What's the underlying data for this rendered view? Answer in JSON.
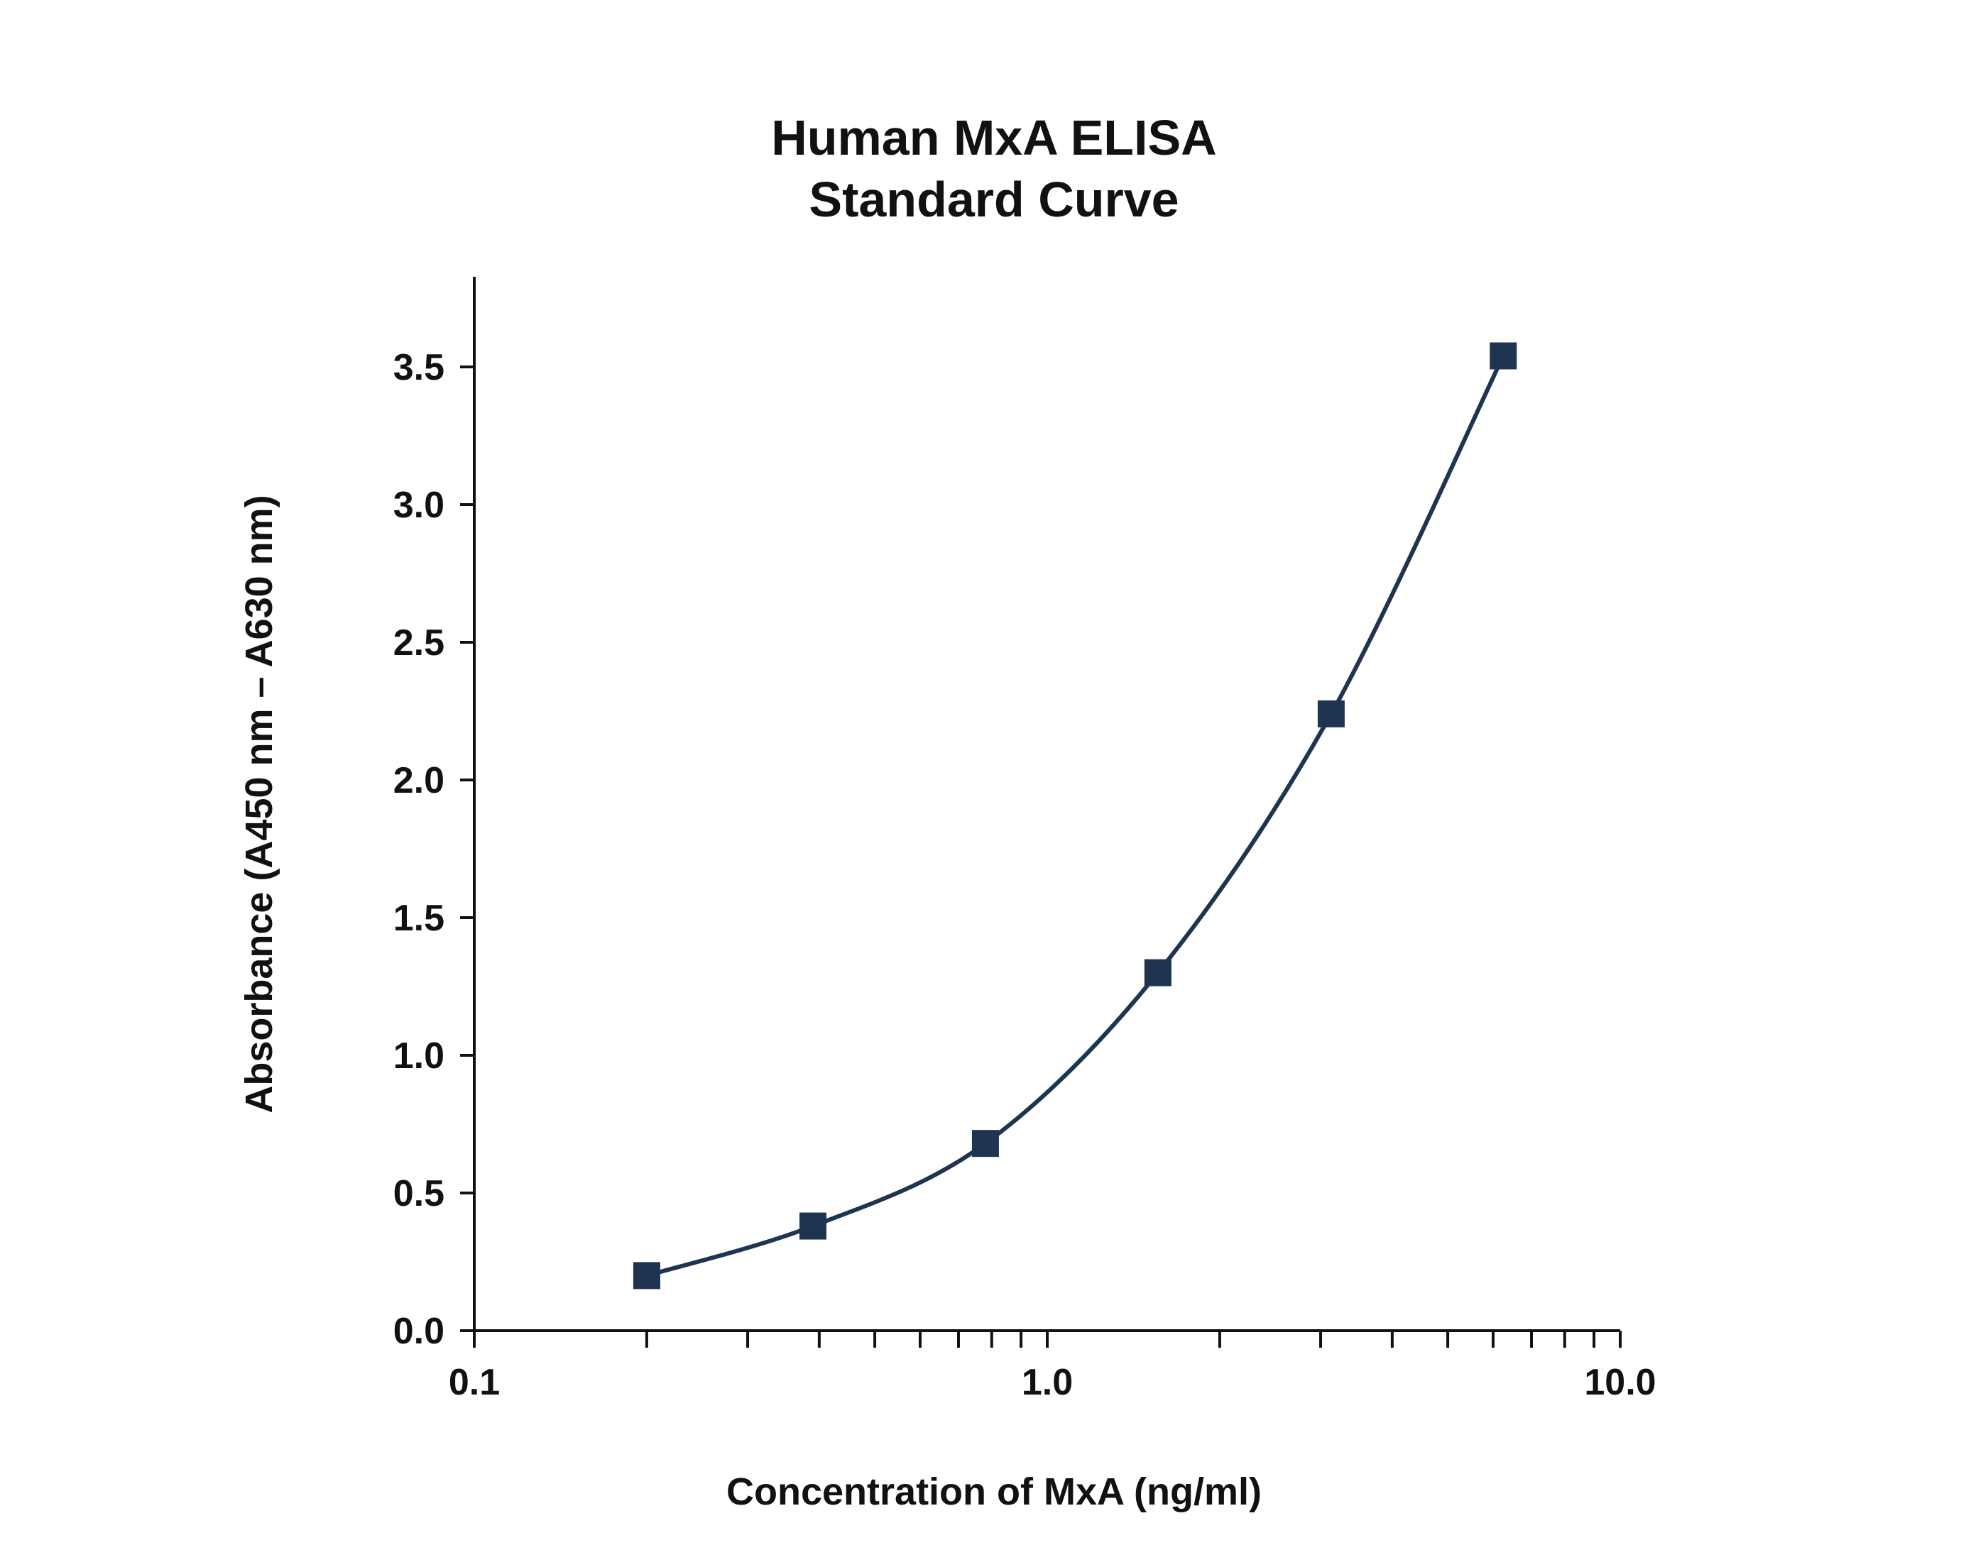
{
  "chart_data": {
    "type": "scatter",
    "title_lines": [
      "Human MxA ELISA",
      "Standard Curve"
    ],
    "xlabel": "Concentration of MxA (ng/ml)",
    "ylabel": "Absorbance (A450 nm – A630 nm)",
    "x_scale": "log",
    "xlim": [
      0.1,
      10.0
    ],
    "ylim": [
      0.0,
      3.8
    ],
    "x_ticks": [
      {
        "value": 0.1,
        "label": "0.1"
      },
      {
        "value": 1.0,
        "label": "1.0"
      },
      {
        "value": 10.0,
        "label": "10.0"
      }
    ],
    "y_ticks": [
      {
        "value": 0.0,
        "label": "0.0"
      },
      {
        "value": 0.5,
        "label": "0.5"
      },
      {
        "value": 1.0,
        "label": "1.0"
      },
      {
        "value": 1.5,
        "label": "1.5"
      },
      {
        "value": 2.0,
        "label": "2.0"
      },
      {
        "value": 2.5,
        "label": "2.5"
      },
      {
        "value": 3.0,
        "label": "3.0"
      },
      {
        "value": 3.5,
        "label": "3.5"
      }
    ],
    "series": [
      {
        "x": [
          0.2,
          0.39,
          0.78,
          1.56,
          3.13,
          6.25
        ],
        "y": [
          0.2,
          0.38,
          0.68,
          1.3,
          2.24,
          3.54
        ],
        "marker": "square",
        "fit_line": true,
        "color": "#1f3451"
      }
    ],
    "grid": false,
    "legend": "none"
  }
}
